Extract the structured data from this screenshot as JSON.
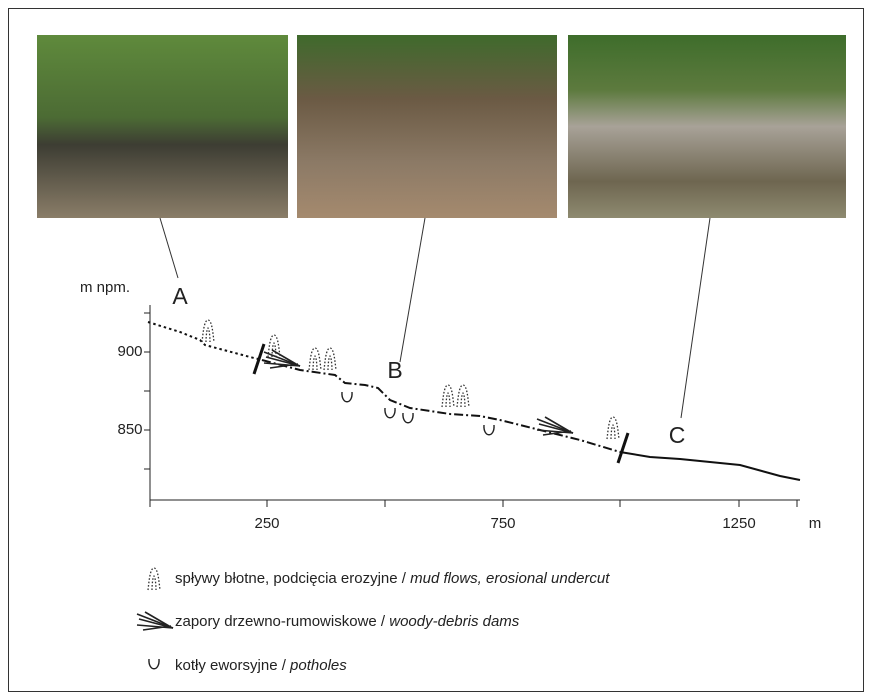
{
  "photos": [
    {
      "label": "A"
    },
    {
      "label": "B"
    },
    {
      "label": "C"
    }
  ],
  "profile": {
    "y_axis_label": "m npm.",
    "x_unit": "m",
    "yticks": [
      900,
      850
    ],
    "xticks": [
      250,
      750,
      1250
    ]
  },
  "legend": [
    {
      "polish": "spływy błotne, podcięcia erozyjne /",
      "english": "mud flows, erosional undercut"
    },
    {
      "polish": "zapory drzewno-rumowiskowe /",
      "english": "woody-debris dams"
    },
    {
      "polish": "kotły eworsyjne /",
      "english": "potholes"
    }
  ]
}
